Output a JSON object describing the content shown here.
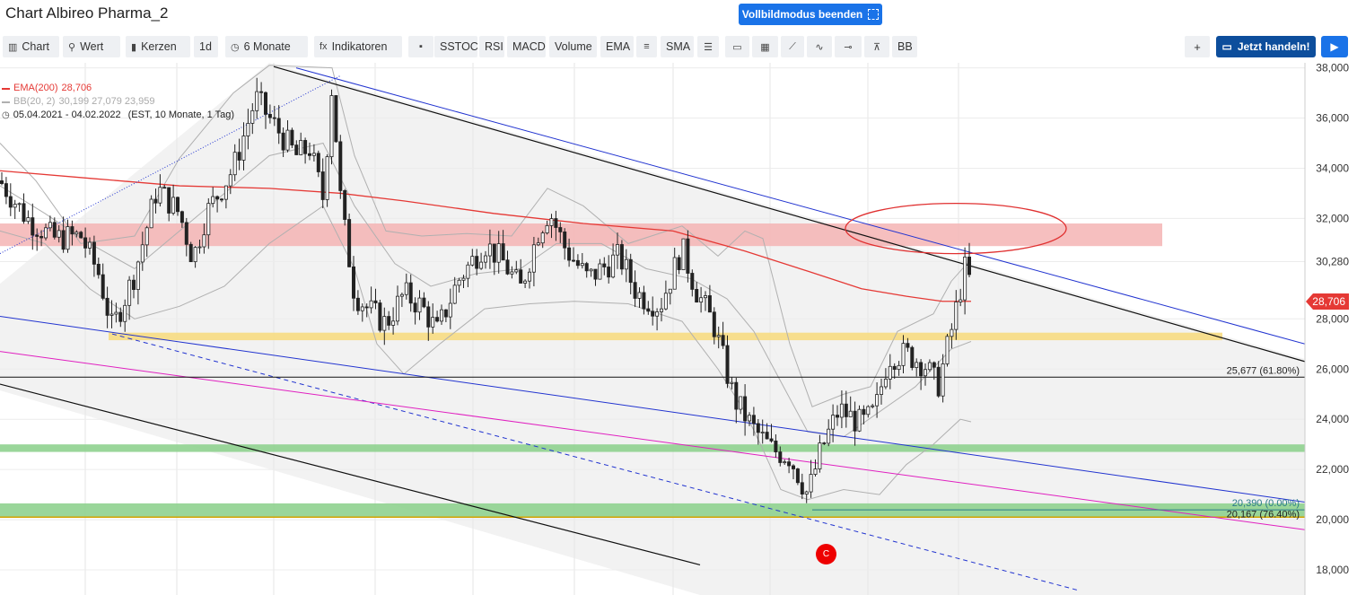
{
  "window": {
    "title": "Chart Albireo Pharma_2"
  },
  "header": {
    "fullscreen_label": "Vollbildmodus beenden"
  },
  "toolbar": {
    "items": [
      {
        "name": "chart",
        "label": "Chart",
        "icon": "bar-chart-icon"
      },
      {
        "name": "wert",
        "label": "Wert",
        "icon": "search-icon"
      },
      {
        "name": "kerzen",
        "label": "Kerzen",
        "icon": "candles-icon"
      },
      {
        "name": "interval",
        "label": "1d",
        "icon": ""
      },
      {
        "name": "period",
        "label": "6 Monate",
        "icon": "clock-icon"
      },
      {
        "name": "indikatoren",
        "label": "Indikatoren",
        "icon": "fx-icon"
      },
      {
        "name": "bookmark",
        "label": "",
        "icon": "bookmark-icon"
      },
      {
        "name": "sstoc",
        "label": "SSTOC",
        "icon": ""
      },
      {
        "name": "rsi",
        "label": "RSI",
        "icon": ""
      },
      {
        "name": "macd",
        "label": "MACD",
        "icon": ""
      },
      {
        "name": "volume",
        "label": "Volume",
        "icon": ""
      },
      {
        "name": "ema",
        "label": "EMA",
        "icon": ""
      },
      {
        "name": "ema-settings",
        "label": "",
        "icon": "lines-icon"
      },
      {
        "name": "sma",
        "label": "SMA",
        "icon": ""
      },
      {
        "name": "hlines",
        "label": "",
        "icon": "menu-icon"
      },
      {
        "name": "rect",
        "label": "",
        "icon": "rectangle-icon"
      },
      {
        "name": "pattern",
        "label": "",
        "icon": "pattern-icon"
      },
      {
        "name": "trend",
        "label": "",
        "icon": "trendline-icon"
      },
      {
        "name": "wave",
        "label": "",
        "icon": "wave-icon"
      },
      {
        "name": "hline",
        "label": "",
        "icon": "horizontal-line-icon"
      },
      {
        "name": "fib",
        "label": "",
        "icon": "fibonacci-icon"
      },
      {
        "name": "bb",
        "label": "BB",
        "icon": ""
      }
    ],
    "trade_label": "Jetzt handeln!"
  },
  "legend": {
    "ema_label": "EMA(200)",
    "ema_value": "28,706",
    "bb_label": "BB(20, 2)",
    "bb_values": "30,199  27,079  23,959",
    "range": "05.04.2021 - 04.02.2022",
    "range_detail": "(EST, 10 Monate, 1 Tag)"
  },
  "colors": {
    "ema": "#e53935",
    "bb": "#b0b0b0",
    "resistance_zone": "#f4b4b4",
    "support_zone_yellow": "#f7dc82",
    "support_zone_green": "#8fd18f",
    "channel_blue": "#2234d0",
    "pink": "#e020c0",
    "accent": "#1a73e8"
  },
  "chart_data": {
    "type": "candlestick",
    "y_axis": {
      "ticks": [
        "38,000",
        "36,000",
        "34,000",
        "32,000",
        "30,280",
        "28,000",
        "26,000",
        "24,000",
        "22,000",
        "20,000",
        "18,000"
      ],
      "tick_values": [
        38,
        36,
        34,
        32,
        30.28,
        28,
        26,
        24,
        22,
        20,
        18
      ],
      "range": [
        17.0,
        38.2
      ]
    },
    "current_price": "28,706",
    "current_price_value": 28.706,
    "annotations": [
      {
        "label": "25,677 (61.80%)",
        "value": 25.677
      },
      {
        "label": "20,167 (76.40%)",
        "value": 20.167
      },
      {
        "label": "20,390 (0.00%)",
        "value": 20.39
      }
    ],
    "marker": {
      "label": "C",
      "type": "elliott-wave"
    }
  }
}
